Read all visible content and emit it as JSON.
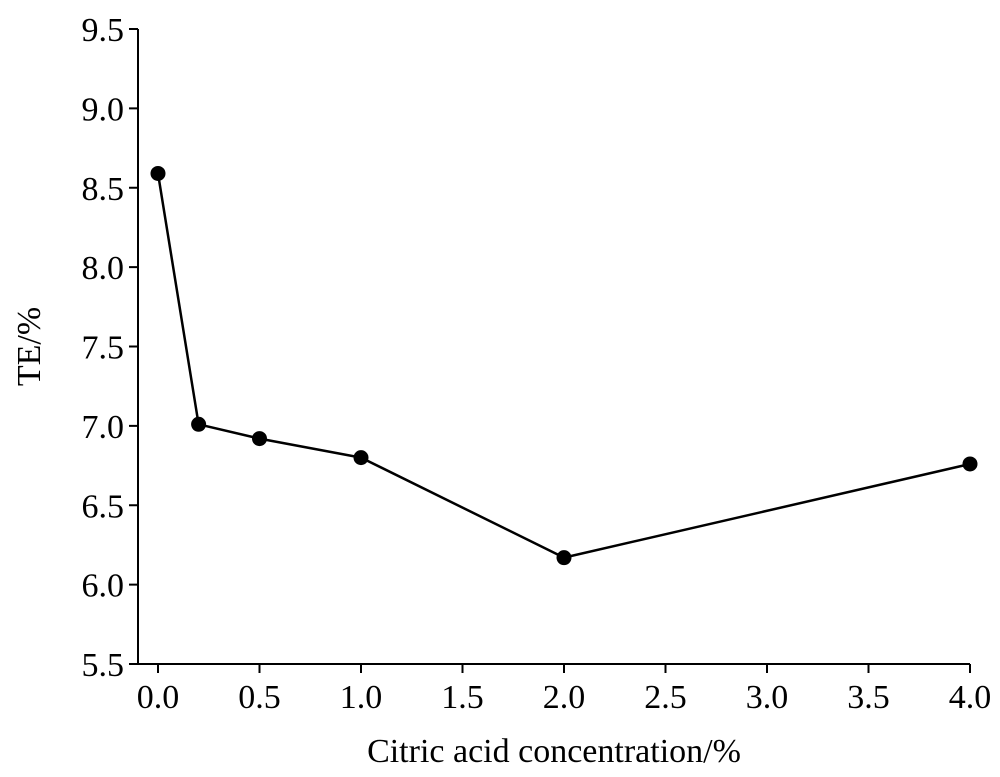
{
  "chart_data": {
    "type": "line",
    "title": "",
    "xlabel": "Citric acid concentration/%",
    "ylabel": "TE/%",
    "xlim": [
      0.0,
      4.0
    ],
    "ylim": [
      5.5,
      9.5
    ],
    "xticks": [
      "0.0",
      "0.5",
      "1.0",
      "1.5",
      "2.0",
      "2.5",
      "3.0",
      "3.5",
      "4.0"
    ],
    "yticks": [
      "5.5",
      "6.0",
      "6.5",
      "7.0",
      "7.5",
      "8.0",
      "8.5",
      "9.0",
      "9.5"
    ],
    "grid": false,
    "series": [
      {
        "x": [
          0.0,
          0.2,
          0.5,
          1.0,
          2.0,
          4.0
        ],
        "y": [
          8.59,
          7.01,
          6.92,
          6.8,
          6.17,
          6.76
        ],
        "color": "#000000",
        "marker": "filled-circle"
      }
    ]
  }
}
